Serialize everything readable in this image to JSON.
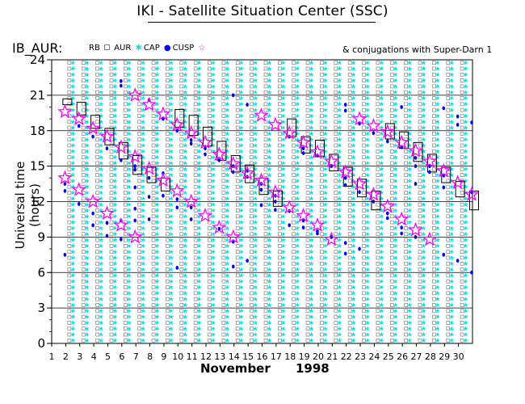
{
  "header": {
    "title": "IKI - Satellite Situation Center (SSC)",
    "panel_id": "IB_AUR:",
    "conjugation_note": "& conjugations with Super-Darn 1"
  },
  "legend": {
    "items": [
      {
        "label": "RB",
        "symbol": "rect-outline"
      },
      {
        "label": "AUR",
        "symbol": "small-square"
      },
      {
        "label": "CAP",
        "symbol": "cyan-star"
      },
      {
        "label": "CUSP",
        "symbol": "magenta-star"
      }
    ]
  },
  "colors": {
    "axis": "#000000",
    "aur": "#808080",
    "cap": "#00e5ee",
    "cusp_dot": "#0000ff",
    "cusp_star": "#ff00ff",
    "rb": "#000000"
  },
  "chart_data": {
    "type": "scatter",
    "title": "IKI - Satellite Situation Center (SSC)",
    "ylabel": "Universal time (hours)",
    "xlabel": "November 1998",
    "x_month": "November",
    "x_year": "1998",
    "xlim": [
      1,
      31
    ],
    "ylim": [
      0,
      24
    ],
    "x_ticks": [
      "1",
      "2",
      "3",
      "4",
      "5",
      "6",
      "7",
      "8",
      "9",
      "10",
      "11",
      "12",
      "13",
      "14",
      "15",
      "16",
      "17",
      "18",
      "19",
      "20",
      "21",
      "22",
      "23",
      "24",
      "25",
      "26",
      "27",
      "28",
      "29",
      "30"
    ],
    "y_ticks": [
      "0",
      "3",
      "6",
      "9",
      "12",
      "15",
      "18",
      "21",
      "24"
    ],
    "grid": "horizontal",
    "rb_boxes": [
      {
        "day": 2,
        "start": 20.2,
        "end": 20.7
      },
      {
        "day": 3,
        "start": 19.3,
        "end": 20.4
      },
      {
        "day": 4,
        "start": 18.2,
        "end": 19.3
      },
      {
        "day": 5,
        "start": 16.8,
        "end": 18.2
      },
      {
        "day": 6,
        "start": 15.6,
        "end": 17.0
      },
      {
        "day": 7,
        "start": 14.3,
        "end": 15.9
      },
      {
        "day": 8,
        "start": 13.6,
        "end": 14.9
      },
      {
        "day": 9,
        "start": 12.9,
        "end": 14.0
      },
      {
        "day": 10,
        "start": 18.3,
        "end": 19.8
      },
      {
        "day": 11,
        "start": 17.6,
        "end": 19.3
      },
      {
        "day": 12,
        "start": 16.7,
        "end": 18.3
      },
      {
        "day": 13,
        "start": 15.5,
        "end": 17.1
      },
      {
        "day": 14,
        "start": 14.5,
        "end": 15.9
      },
      {
        "day": 15,
        "start": 13.6,
        "end": 15.1
      },
      {
        "day": 16,
        "start": 12.6,
        "end": 14.0
      },
      {
        "day": 17,
        "start": 11.6,
        "end": 12.9
      },
      {
        "day": 18,
        "start": 17.5,
        "end": 19.0
      },
      {
        "day": 19,
        "start": 16.1,
        "end": 17.5
      },
      {
        "day": 20,
        "start": 15.8,
        "end": 17.2
      },
      {
        "day": 21,
        "start": 14.6,
        "end": 16.0
      },
      {
        "day": 22,
        "start": 13.3,
        "end": 14.9
      },
      {
        "day": 23,
        "start": 12.4,
        "end": 13.9
      },
      {
        "day": 24,
        "start": 11.3,
        "end": 12.9
      },
      {
        "day": 25,
        "start": 17.3,
        "end": 18.6
      },
      {
        "day": 26,
        "start": 16.5,
        "end": 17.9
      },
      {
        "day": 27,
        "start": 15.4,
        "end": 17.0
      },
      {
        "day": 28,
        "start": 14.5,
        "end": 16.0
      },
      {
        "day": 29,
        "start": 13.6,
        "end": 14.9
      },
      {
        "day": 30,
        "start": 12.4,
        "end": 13.7
      },
      {
        "day": 31,
        "start": 11.3,
        "end": 12.9
      }
    ],
    "cusp_stars": [
      {
        "day": 2,
        "time": 19.6
      },
      {
        "day": 2,
        "time": 14.0
      },
      {
        "day": 3,
        "time": 19.0
      },
      {
        "day": 3,
        "time": 13.0
      },
      {
        "day": 4,
        "time": 18.2
      },
      {
        "day": 4,
        "time": 12.0
      },
      {
        "day": 5,
        "time": 17.5
      },
      {
        "day": 5,
        "time": 11.0
      },
      {
        "day": 6,
        "time": 16.6
      },
      {
        "day": 6,
        "time": 10.0
      },
      {
        "day": 7,
        "time": 21.0
      },
      {
        "day": 7,
        "time": 15.8
      },
      {
        "day": 7,
        "time": 9.0
      },
      {
        "day": 8,
        "time": 20.2
      },
      {
        "day": 8,
        "time": 14.8
      },
      {
        "day": 9,
        "time": 19.4
      },
      {
        "day": 9,
        "time": 13.8
      },
      {
        "day": 10,
        "time": 18.5
      },
      {
        "day": 10,
        "time": 12.9
      },
      {
        "day": 11,
        "time": 17.8
      },
      {
        "day": 11,
        "time": 12.0
      },
      {
        "day": 12,
        "time": 17.0
      },
      {
        "day": 12,
        "time": 10.8
      },
      {
        "day": 13,
        "time": 16.0
      },
      {
        "day": 13,
        "time": 9.8
      },
      {
        "day": 14,
        "time": 15.2
      },
      {
        "day": 14,
        "time": 9.0
      },
      {
        "day": 15,
        "time": 14.4
      },
      {
        "day": 16,
        "time": 19.3
      },
      {
        "day": 16,
        "time": 13.8
      },
      {
        "day": 17,
        "time": 18.5
      },
      {
        "day": 17,
        "time": 12.8
      },
      {
        "day": 18,
        "time": 17.8
      },
      {
        "day": 18,
        "time": 11.5
      },
      {
        "day": 19,
        "time": 17.0
      },
      {
        "day": 19,
        "time": 10.8
      },
      {
        "day": 20,
        "time": 16.2
      },
      {
        "day": 20,
        "time": 10.0
      },
      {
        "day": 21,
        "time": 15.4
      },
      {
        "day": 21,
        "time": 8.8
      },
      {
        "day": 22,
        "time": 14.5
      },
      {
        "day": 23,
        "time": 19.0
      },
      {
        "day": 23,
        "time": 13.5
      },
      {
        "day": 24,
        "time": 18.4
      },
      {
        "day": 24,
        "time": 12.6
      },
      {
        "day": 25,
        "time": 17.9
      },
      {
        "day": 25,
        "time": 11.6
      },
      {
        "day": 26,
        "time": 17.0
      },
      {
        "day": 26,
        "time": 10.5
      },
      {
        "day": 27,
        "time": 16.3
      },
      {
        "day": 27,
        "time": 9.6
      },
      {
        "day": 28,
        "time": 15.4
      },
      {
        "day": 28,
        "time": 8.8
      },
      {
        "day": 29,
        "time": 14.6
      },
      {
        "day": 30,
        "time": 13.6
      },
      {
        "day": 31,
        "time": 12.6
      }
    ],
    "cusp_dots": [
      {
        "day": 2,
        "time": 12.9
      },
      {
        "day": 2,
        "time": 13.5
      },
      {
        "day": 2,
        "time": 7.5
      },
      {
        "day": 3,
        "time": 11.8
      },
      {
        "day": 3,
        "time": 18.4
      },
      {
        "day": 4,
        "time": 17.5
      },
      {
        "day": 4,
        "time": 11.0
      },
      {
        "day": 4,
        "time": 10.0
      },
      {
        "day": 5,
        "time": 16.5
      },
      {
        "day": 5,
        "time": 10.2
      },
      {
        "day": 5,
        "time": 9.1
      },
      {
        "day": 6,
        "time": 22.2
      },
      {
        "day": 6,
        "time": 21.8
      },
      {
        "day": 6,
        "time": 15.5
      },
      {
        "day": 6,
        "time": 10.4
      },
      {
        "day": 6,
        "time": 8.8
      },
      {
        "day": 7,
        "time": 15.0
      },
      {
        "day": 7,
        "time": 14.7
      },
      {
        "day": 7,
        "time": 13.2
      },
      {
        "day": 7,
        "time": 11.4
      },
      {
        "day": 7,
        "time": 10.4
      },
      {
        "day": 8,
        "time": 20.6
      },
      {
        "day": 8,
        "time": 14.0
      },
      {
        "day": 8,
        "time": 12.4
      },
      {
        "day": 8,
        "time": 10.5
      },
      {
        "day": 9,
        "time": 19.0
      },
      {
        "day": 9,
        "time": 14.4
      },
      {
        "day": 9,
        "time": 12.5
      },
      {
        "day": 10,
        "time": 18.0
      },
      {
        "day": 10,
        "time": 12.2
      },
      {
        "day": 10,
        "time": 11.5
      },
      {
        "day": 10,
        "time": 6.4
      },
      {
        "day": 11,
        "time": 17.2
      },
      {
        "day": 11,
        "time": 16.9
      },
      {
        "day": 11,
        "time": 11.5
      },
      {
        "day": 11,
        "time": 10.5
      },
      {
        "day": 12,
        "time": 16.5
      },
      {
        "day": 12,
        "time": 16.0
      },
      {
        "day": 13,
        "time": 15.5
      },
      {
        "day": 13,
        "time": 9.7
      },
      {
        "day": 14,
        "time": 21.0
      },
      {
        "day": 14,
        "time": 15.0
      },
      {
        "day": 14,
        "time": 14.5
      },
      {
        "day": 14,
        "time": 8.6
      },
      {
        "day": 14,
        "time": 6.5
      },
      {
        "day": 15,
        "time": 20.2
      },
      {
        "day": 15,
        "time": 14.6
      },
      {
        "day": 15,
        "time": 14.1
      },
      {
        "day": 15,
        "time": 7.0
      },
      {
        "day": 16,
        "time": 13.5
      },
      {
        "day": 16,
        "time": 13.0
      },
      {
        "day": 16,
        "time": 11.7
      },
      {
        "day": 17,
        "time": 12.5
      },
      {
        "day": 17,
        "time": 12.0
      },
      {
        "day": 17,
        "time": 11.3
      },
      {
        "day": 18,
        "time": 17.5
      },
      {
        "day": 18,
        "time": 11.2
      },
      {
        "day": 18,
        "time": 10.0
      },
      {
        "day": 19,
        "time": 16.5
      },
      {
        "day": 19,
        "time": 16.1
      },
      {
        "day": 19,
        "time": 10.4
      },
      {
        "day": 19,
        "time": 9.8
      },
      {
        "day": 20,
        "time": 15.9
      },
      {
        "day": 20,
        "time": 9.5
      },
      {
        "day": 20,
        "time": 9.3
      },
      {
        "day": 21,
        "time": 15.0
      },
      {
        "day": 21,
        "time": 9.0
      },
      {
        "day": 22,
        "time": 20.2
      },
      {
        "day": 22,
        "time": 19.7
      },
      {
        "day": 22,
        "time": 14.0
      },
      {
        "day": 22,
        "time": 13.4
      },
      {
        "day": 22,
        "time": 8.5
      },
      {
        "day": 22,
        "time": 7.6
      },
      {
        "day": 23,
        "time": 18.6
      },
      {
        "day": 23,
        "time": 12.8
      },
      {
        "day": 23,
        "time": 8.0
      },
      {
        "day": 24,
        "time": 17.8
      },
      {
        "day": 24,
        "time": 12.0
      },
      {
        "day": 25,
        "time": 17.1
      },
      {
        "day": 25,
        "time": 11.0
      },
      {
        "day": 25,
        "time": 10.6
      },
      {
        "day": 26,
        "time": 20.0
      },
      {
        "day": 26,
        "time": 16.6
      },
      {
        "day": 26,
        "time": 9.8
      },
      {
        "day": 26,
        "time": 9.3
      },
      {
        "day": 27,
        "time": 15.7
      },
      {
        "day": 27,
        "time": 15.0
      },
      {
        "day": 27,
        "time": 13.5
      },
      {
        "day": 27,
        "time": 9.0
      },
      {
        "day": 28,
        "time": 15.0
      },
      {
        "day": 28,
        "time": 14.5
      },
      {
        "day": 29,
        "time": 19.9
      },
      {
        "day": 29,
        "time": 14.2
      },
      {
        "day": 29,
        "time": 13.2
      },
      {
        "day": 29,
        "time": 7.5
      },
      {
        "day": 30,
        "time": 19.2
      },
      {
        "day": 30,
        "time": 18.5
      },
      {
        "day": 30,
        "time": 7.0
      },
      {
        "day": 31,
        "time": 18.7
      },
      {
        "day": 31,
        "time": 12.8
      },
      {
        "day": 31,
        "time": 6.0
      }
    ]
  }
}
